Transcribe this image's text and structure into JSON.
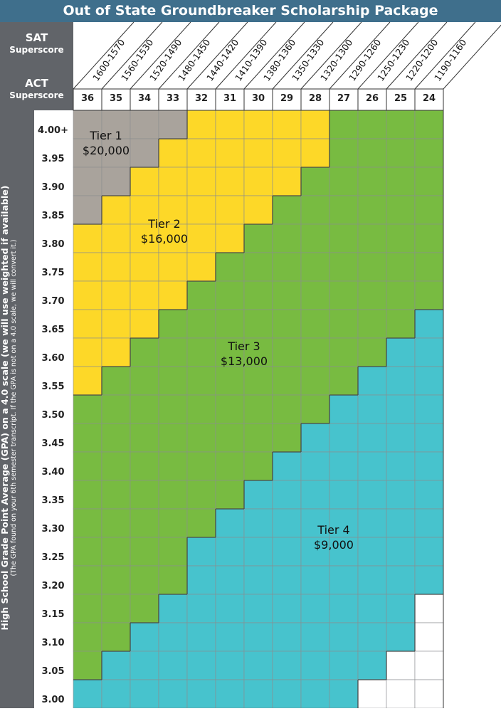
{
  "title": "Out of State Groundbreaker Scholarship Package",
  "header": {
    "sat_title": "SAT",
    "sat_subtitle": "Superscore",
    "act_title": "ACT",
    "act_subtitle": "Superscore"
  },
  "y_axis": {
    "title": "High School Grade Point Average (GPA) on a 4.0 scale (we will use weighted if available)",
    "note": "(The GPA found on your 6th semester transcript.  If the GPA is not on a 4.0 scale, we will convert it.)"
  },
  "colors": {
    "title_bar": "#3f6f8c",
    "axis_panel": "#616469",
    "tier1": "#a9a39c",
    "tier2": "#fdd828",
    "tier3": "#78bb41",
    "tier4": "#47c3cd",
    "none": "#ffffff"
  },
  "chart_data": {
    "type": "heatmap",
    "title": "Out of State Groundbreaker Scholarship Package",
    "x_act": [
      "36",
      "35",
      "34",
      "33",
      "32",
      "31",
      "30",
      "29",
      "28",
      "27",
      "26",
      "25",
      "24"
    ],
    "x_sat": [
      "1600-1570",
      "1560-1530",
      "1520-1490",
      "1480-1450",
      "1440-1420",
      "1410-1390",
      "1380-1360",
      "1350-1330",
      "1320-1300",
      "1290-1260",
      "1250-1230",
      "1220-1200",
      "1190-1160"
    ],
    "y_gpa": [
      "4.00+",
      "3.95",
      "3.90",
      "3.85",
      "3.80",
      "3.75",
      "3.70",
      "3.65",
      "3.60",
      "3.55",
      "3.50",
      "3.45",
      "3.40",
      "3.35",
      "3.30",
      "3.25",
      "3.20",
      "3.15",
      "3.10",
      "3.05",
      "3.00"
    ],
    "tiers": [
      {
        "name": "Tier 1",
        "award": "$20,000"
      },
      {
        "name": "Tier 2",
        "award": "$16,000"
      },
      {
        "name": "Tier 3",
        "award": "$13,000"
      },
      {
        "name": "Tier 4",
        "award": "$9,000"
      }
    ],
    "grid": [
      [
        1,
        1,
        1,
        1,
        2,
        2,
        2,
        2,
        2,
        3,
        3,
        3,
        3
      ],
      [
        1,
        1,
        1,
        2,
        2,
        2,
        2,
        2,
        2,
        3,
        3,
        3,
        3
      ],
      [
        1,
        1,
        2,
        2,
        2,
        2,
        2,
        2,
        3,
        3,
        3,
        3,
        3
      ],
      [
        1,
        2,
        2,
        2,
        2,
        2,
        2,
        3,
        3,
        3,
        3,
        3,
        3
      ],
      [
        2,
        2,
        2,
        2,
        2,
        2,
        3,
        3,
        3,
        3,
        3,
        3,
        3
      ],
      [
        2,
        2,
        2,
        2,
        2,
        3,
        3,
        3,
        3,
        3,
        3,
        3,
        3
      ],
      [
        2,
        2,
        2,
        2,
        3,
        3,
        3,
        3,
        3,
        3,
        3,
        3,
        3
      ],
      [
        2,
        2,
        2,
        3,
        3,
        3,
        3,
        3,
        3,
        3,
        3,
        3,
        4
      ],
      [
        2,
        2,
        3,
        3,
        3,
        3,
        3,
        3,
        3,
        3,
        3,
        4,
        4
      ],
      [
        2,
        3,
        3,
        3,
        3,
        3,
        3,
        3,
        3,
        3,
        4,
        4,
        4
      ],
      [
        3,
        3,
        3,
        3,
        3,
        3,
        3,
        3,
        3,
        4,
        4,
        4,
        4
      ],
      [
        3,
        3,
        3,
        3,
        3,
        3,
        3,
        3,
        4,
        4,
        4,
        4,
        4
      ],
      [
        3,
        3,
        3,
        3,
        3,
        3,
        3,
        4,
        4,
        4,
        4,
        4,
        4
      ],
      [
        3,
        3,
        3,
        3,
        3,
        3,
        4,
        4,
        4,
        4,
        4,
        4,
        4
      ],
      [
        3,
        3,
        3,
        3,
        3,
        4,
        4,
        4,
        4,
        4,
        4,
        4,
        4
      ],
      [
        3,
        3,
        3,
        3,
        4,
        4,
        4,
        4,
        4,
        4,
        4,
        4,
        4
      ],
      [
        3,
        3,
        3,
        3,
        4,
        4,
        4,
        4,
        4,
        4,
        4,
        4,
        4
      ],
      [
        3,
        3,
        3,
        4,
        4,
        4,
        4,
        4,
        4,
        4,
        4,
        4,
        0
      ],
      [
        3,
        3,
        4,
        4,
        4,
        4,
        4,
        4,
        4,
        4,
        4,
        4,
        0
      ],
      [
        3,
        4,
        4,
        4,
        4,
        4,
        4,
        4,
        4,
        4,
        4,
        0,
        0
      ],
      [
        4,
        4,
        4,
        4,
        4,
        4,
        4,
        4,
        4,
        4,
        0,
        0,
        0
      ]
    ]
  }
}
